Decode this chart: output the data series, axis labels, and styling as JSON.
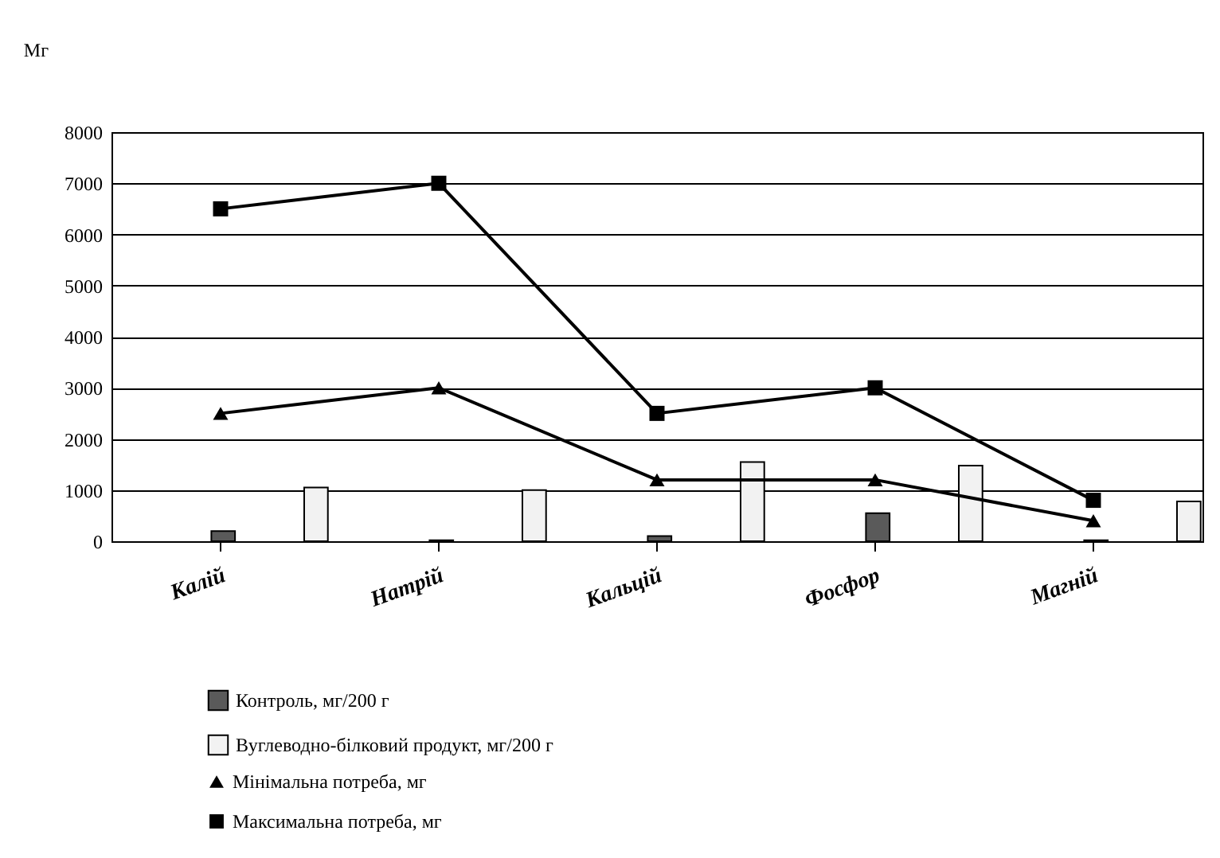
{
  "chart_data": {
    "type": "bar",
    "ylabel": "Мг",
    "categories": [
      "Калій",
      "Натрій",
      "Кальцій",
      "Фосфор",
      "Магній"
    ],
    "series": [
      {
        "name": "Контроль, мг/200 г",
        "color": "#5a5a5a",
        "values": [
          200,
          20,
          100,
          550,
          20
        ]
      },
      {
        "name": "Вуглеводно-білковий продукт, мг/200 г",
        "color": "#f2f2f2",
        "values": [
          1050,
          1000,
          1550,
          1480,
          780
        ]
      },
      {
        "name": "Мінімальна потреба, мг",
        "type": "line",
        "color": "#000000",
        "marker": "triangle",
        "values": [
          2500,
          3000,
          1200,
          1200,
          400
        ]
      },
      {
        "name": "Максимальна потреба, мг",
        "type": "line",
        "color": "#000000",
        "marker": "square",
        "values": [
          6500,
          7000,
          2500,
          3000,
          800
        ]
      }
    ],
    "ylim": [
      0,
      8000
    ],
    "yticks": [
      0,
      1000,
      2000,
      3000,
      4000,
      5000,
      6000,
      7000,
      8000
    ],
    "grid": "y",
    "legend": "bottom"
  }
}
